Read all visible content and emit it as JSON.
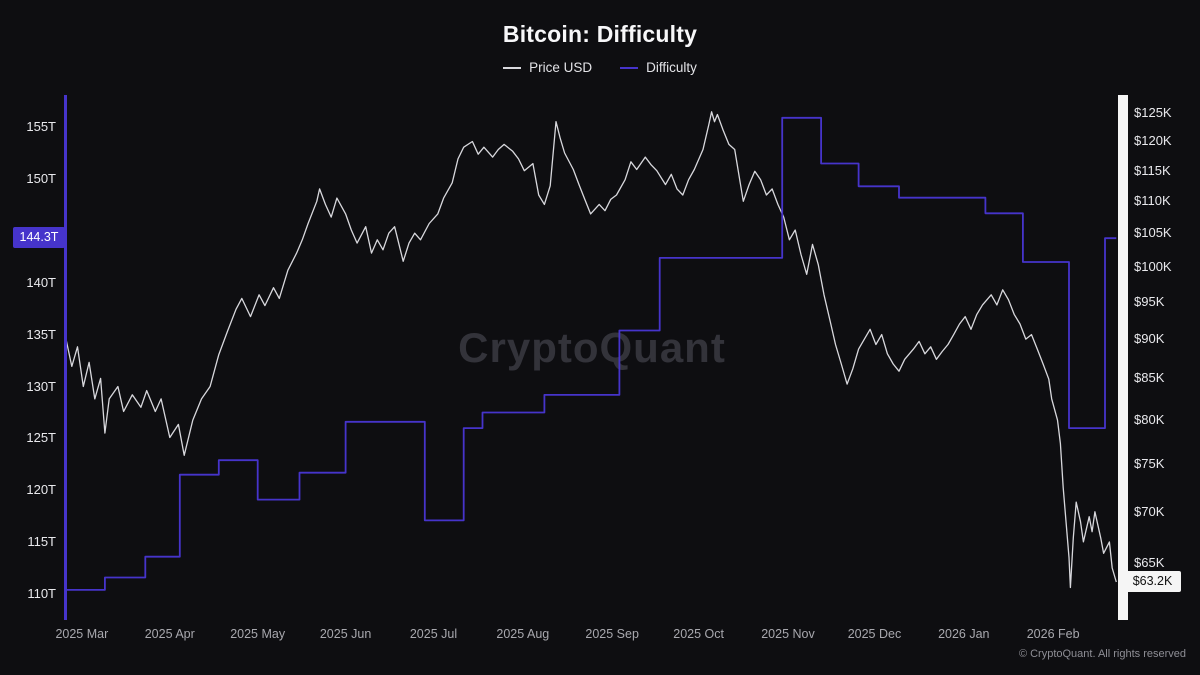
{
  "header": {
    "title": "Bitcoin: Difficulty"
  },
  "legend": {
    "price_label": "Price USD",
    "difficulty_label": "Difficulty"
  },
  "watermark": "CryptoQuant",
  "footer": {
    "copyright": "© CryptoQuant. All rights reserved"
  },
  "colors": {
    "background": "#0e0e11",
    "price_line": "#d8d8dd",
    "difficulty_line": "#4634cb",
    "right_axis_bar": "#f5f5f5",
    "tick_text": "#e9e9ed",
    "x_tick_text": "#a8a8ae",
    "watermark_text": "#33333a",
    "price_badge_bg": "#f5f5f5",
    "price_badge_text": "#111111"
  },
  "current_values": {
    "difficulty": {
      "value": 144.3,
      "label": "144.3T"
    },
    "price": {
      "value": 63.2,
      "label": "$63.2K"
    }
  },
  "chart_data": {
    "type": "line",
    "title": "Bitcoin: Difficulty",
    "x_unit": "days since 2025-03-01",
    "x_domain_days": 365,
    "x_axis_labels": [
      {
        "label": "2025 Mar",
        "t": 5.5
      },
      {
        "label": "2025 Apr",
        "t": 36
      },
      {
        "label": "2025 May",
        "t": 66.5
      },
      {
        "label": "2025 Jun",
        "t": 97
      },
      {
        "label": "2025 Jul",
        "t": 127.5
      },
      {
        "label": "2025 Aug",
        "t": 158.5
      },
      {
        "label": "2025 Sep",
        "t": 189.5
      },
      {
        "label": "2025 Oct",
        "t": 219.5
      },
      {
        "label": "2025 Nov",
        "t": 250.5
      },
      {
        "label": "2025 Dec",
        "t": 280.5
      },
      {
        "label": "2026 Jan",
        "t": 311.5
      },
      {
        "label": "2026 Feb",
        "t": 342.5
      }
    ],
    "left_axis": {
      "name": "Difficulty",
      "scale": "linear",
      "unit": "T",
      "domain": [
        107.5,
        158.1
      ],
      "ticks": [
        155,
        150,
        140,
        135,
        130,
        125,
        120,
        115,
        110
      ],
      "format": "{v}T"
    },
    "right_axis": {
      "name": "Price USD",
      "scale": "log",
      "unit": "$K",
      "domain": [
        59.8,
        128.4
      ],
      "ticks": [
        125,
        120,
        115,
        110,
        105,
        100,
        95,
        90,
        85,
        80,
        75,
        70,
        65
      ],
      "format": "${v}K"
    },
    "series": [
      {
        "name": "Price USD",
        "axis": "right",
        "color_key": "price_line",
        "step": false,
        "points": [
          [
            0,
            90
          ],
          [
            2,
            86.5
          ],
          [
            4,
            89
          ],
          [
            6,
            84
          ],
          [
            8,
            87
          ],
          [
            10,
            82.5
          ],
          [
            12,
            85
          ],
          [
            13.5,
            78.5
          ],
          [
            15,
            82.5
          ],
          [
            18,
            84
          ],
          [
            20,
            81
          ],
          [
            23,
            83
          ],
          [
            26,
            81.5
          ],
          [
            28,
            83.5
          ],
          [
            31,
            81
          ],
          [
            33,
            82.5
          ],
          [
            36,
            78
          ],
          [
            39,
            79.5
          ],
          [
            41,
            76
          ],
          [
            44,
            80
          ],
          [
            47,
            82.5
          ],
          [
            50,
            84
          ],
          [
            53,
            88
          ],
          [
            56,
            91
          ],
          [
            59,
            94
          ],
          [
            61,
            95.5
          ],
          [
            64,
            93
          ],
          [
            67,
            96
          ],
          [
            69,
            94.5
          ],
          [
            72,
            97
          ],
          [
            74,
            95.5
          ],
          [
            77,
            99.5
          ],
          [
            80,
            102
          ],
          [
            82,
            104
          ],
          [
            84,
            106.5
          ],
          [
            87,
            110
          ],
          [
            88,
            112
          ],
          [
            90,
            109.5
          ],
          [
            92,
            107.5
          ],
          [
            94,
            110.5
          ],
          [
            97,
            108
          ],
          [
            99,
            105.5
          ],
          [
            101,
            103.5
          ],
          [
            104,
            106
          ],
          [
            106,
            102
          ],
          [
            108,
            104
          ],
          [
            110,
            102.5
          ],
          [
            112,
            105
          ],
          [
            114,
            106
          ],
          [
            117,
            100.8
          ],
          [
            119,
            103.5
          ],
          [
            121,
            105
          ],
          [
            123,
            104
          ],
          [
            126,
            106.5
          ],
          [
            129,
            108
          ],
          [
            131,
            110.5
          ],
          [
            134,
            113
          ],
          [
            136,
            117
          ],
          [
            138,
            119
          ],
          [
            141,
            120
          ],
          [
            143,
            117.8
          ],
          [
            145,
            119
          ],
          [
            148,
            117.3
          ],
          [
            150,
            118.6
          ],
          [
            152,
            119.5
          ],
          [
            155,
            118.3
          ],
          [
            157,
            117
          ],
          [
            159,
            115
          ],
          [
            162,
            116.2
          ],
          [
            164,
            111
          ],
          [
            166,
            109.5
          ],
          [
            168,
            112.5
          ],
          [
            170,
            123.5
          ],
          [
            171.5,
            120.5
          ],
          [
            173,
            118
          ],
          [
            176,
            115.2
          ],
          [
            178,
            112.7
          ],
          [
            180,
            110.3
          ],
          [
            182,
            108
          ],
          [
            185,
            109.5
          ],
          [
            187,
            108.5
          ],
          [
            189,
            110.3
          ],
          [
            191,
            111
          ],
          [
            194,
            113.5
          ],
          [
            196,
            116.5
          ],
          [
            198,
            115.2
          ],
          [
            201,
            117.3
          ],
          [
            203,
            116
          ],
          [
            205,
            115
          ],
          [
            208,
            112.7
          ],
          [
            210,
            114.4
          ],
          [
            212,
            112
          ],
          [
            214,
            111
          ],
          [
            216,
            113.5
          ],
          [
            218,
            115.2
          ],
          [
            221,
            118.6
          ],
          [
            223,
            122.9
          ],
          [
            224,
            125.3
          ],
          [
            225,
            123.5
          ],
          [
            226,
            124.8
          ],
          [
            228,
            122
          ],
          [
            230,
            119.5
          ],
          [
            232,
            118.6
          ],
          [
            235,
            110
          ],
          [
            237,
            112.7
          ],
          [
            239,
            114.9
          ],
          [
            241,
            113.5
          ],
          [
            243,
            111
          ],
          [
            245,
            112
          ],
          [
            247,
            109.5
          ],
          [
            249,
            107.5
          ],
          [
            251,
            104
          ],
          [
            253,
            105.5
          ],
          [
            255,
            101.8
          ],
          [
            257,
            98.9
          ],
          [
            259,
            103.3
          ],
          [
            261,
            100.3
          ],
          [
            263,
            96
          ],
          [
            265,
            92.6
          ],
          [
            267,
            89.3
          ],
          [
            269,
            86.8
          ],
          [
            271,
            84.3
          ],
          [
            273,
            86.2
          ],
          [
            275,
            88.7
          ],
          [
            277,
            90
          ],
          [
            279,
            91.3
          ],
          [
            281,
            89.3
          ],
          [
            283,
            90.6
          ],
          [
            285,
            88.1
          ],
          [
            287,
            86.8
          ],
          [
            289,
            85.9
          ],
          [
            291,
            87.4
          ],
          [
            294,
            88.7
          ],
          [
            296,
            89.7
          ],
          [
            298,
            88.1
          ],
          [
            300,
            89
          ],
          [
            302,
            87.4
          ],
          [
            304,
            88.4
          ],
          [
            306,
            89.3
          ],
          [
            308,
            90.6
          ],
          [
            310,
            92
          ],
          [
            312,
            93
          ],
          [
            314,
            91.3
          ],
          [
            316,
            93.3
          ],
          [
            318,
            94.6
          ],
          [
            321,
            96
          ],
          [
            323,
            94.6
          ],
          [
            325,
            96.7
          ],
          [
            327,
            95.3
          ],
          [
            329,
            93.3
          ],
          [
            331,
            92
          ],
          [
            333,
            90
          ],
          [
            335,
            90.6
          ],
          [
            337,
            88.7
          ],
          [
            339,
            86.8
          ],
          [
            341,
            84.9
          ],
          [
            342,
            82.5
          ],
          [
            344,
            80
          ],
          [
            345,
            77.3
          ],
          [
            346,
            72.5
          ],
          [
            348,
            65.5
          ],
          [
            348.5,
            62.7
          ],
          [
            349.5,
            67.4
          ],
          [
            350.5,
            71
          ],
          [
            352,
            69
          ],
          [
            353,
            67
          ],
          [
            355,
            69.5
          ],
          [
            356,
            68
          ],
          [
            357,
            70
          ],
          [
            359,
            67.4
          ],
          [
            360,
            65.9
          ],
          [
            362,
            67
          ],
          [
            363,
            64.5
          ],
          [
            364.4,
            63.2
          ]
        ]
      },
      {
        "name": "Difficulty",
        "axis": "left",
        "color_key": "difficulty_line",
        "step": true,
        "points": [
          [
            0,
            110.4
          ],
          [
            13.5,
            111.6
          ],
          [
            27.5,
            113.6
          ],
          [
            39.5,
            121.5
          ],
          [
            53,
            122.9
          ],
          [
            66.5,
            119.1
          ],
          [
            81,
            121.7
          ],
          [
            97,
            126.6
          ],
          [
            124.5,
            117.1
          ],
          [
            138,
            126
          ],
          [
            144.5,
            127.5
          ],
          [
            166,
            129.2
          ],
          [
            192,
            135.4
          ],
          [
            206,
            142.4
          ],
          [
            248.5,
            155.9
          ],
          [
            262,
            151.5
          ],
          [
            275,
            149.3
          ],
          [
            289,
            148.2
          ],
          [
            319,
            146.7
          ],
          [
            332,
            142
          ],
          [
            348,
            126
          ],
          [
            360.5,
            144.3
          ],
          [
            364.4,
            144.3
          ]
        ]
      }
    ]
  }
}
